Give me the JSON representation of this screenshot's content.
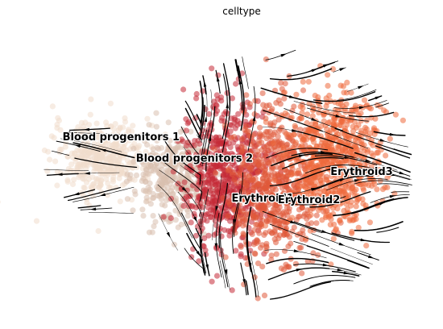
{
  "chart_data": {
    "type": "scatter",
    "title": "celltype",
    "xlabel": "",
    "ylabel": "",
    "axes_visible": false,
    "grid": false,
    "legend": "on-data labels",
    "overlay": "RNA velocity streamlines with arrowheads",
    "series": [
      {
        "name": "Blood progenitors 1",
        "color": "#f0dccc",
        "center": [
          -8.0,
          0.8
        ],
        "spread": [
          2.6,
          1.8
        ],
        "n": 420
      },
      {
        "name": "Blood progenitors 2",
        "color": "#d9c0ae",
        "center": [
          -3.6,
          -0.2
        ],
        "spread": [
          2.0,
          2.2
        ],
        "n": 380
      },
      {
        "name": "Erythroid1",
        "color": "#c42a36",
        "center": [
          -0.4,
          -0.3
        ],
        "spread": [
          2.2,
          3.6
        ],
        "n": 650
      },
      {
        "name": "Erythroid2",
        "color": "#e05a3a",
        "center": [
          2.8,
          -0.8
        ],
        "spread": [
          2.3,
          3.8
        ],
        "n": 650
      },
      {
        "name": "Erythroid3",
        "color": "#ee6a3c",
        "center": [
          6.4,
          0.6
        ],
        "spread": [
          2.4,
          3.4
        ],
        "n": 700
      }
    ],
    "labels": [
      {
        "text": "Blood progenitors 1",
        "x": -10.6,
        "y": 1.9
      },
      {
        "text": "Blood progenitors 2",
        "x": -6.0,
        "y": 0.6
      },
      {
        "text": "Erythroid1",
        "x": 0.0,
        "y": -1.8
      },
      {
        "text": "Erythroid2",
        "x": 2.9,
        "y": -1.9
      },
      {
        "text": "Erythroid3",
        "x": 6.2,
        "y": -0.2
      }
    ],
    "xlim": [
      -12.5,
      12.5
    ],
    "ylim": [
      -9,
      9
    ]
  }
}
